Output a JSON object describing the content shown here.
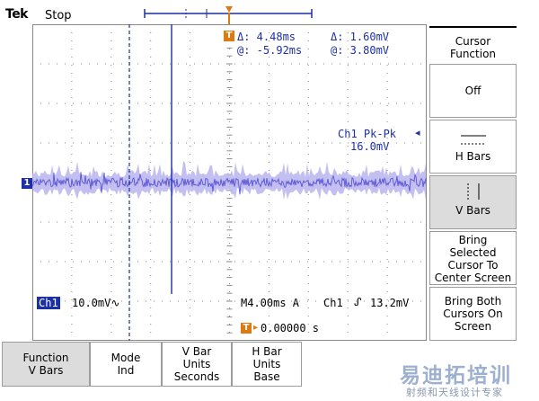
{
  "topbar": {
    "brand": "Tek",
    "status": "Stop"
  },
  "cursor_readout": {
    "delta_time": "Δ:  4.48ms",
    "at_time": "@: -5.92ms",
    "delta_volt": "Δ:   1.60mV",
    "at_volt": "@:   3.80mV"
  },
  "measurement": {
    "label": "Ch1 Pk-Pk",
    "value": "16.0mV"
  },
  "channel_marker": "1",
  "trigger_marker": "T",
  "status_line": {
    "channel": "Ch1",
    "scale": "10.0mV∿",
    "timebase": "M4.00ms  A",
    "trig_channel": "Ch1",
    "trig_level": "13.2mV",
    "trig_position": "0.00000 s"
  },
  "side_menu": {
    "title_line1": "Cursor",
    "title_line2": "Function",
    "items": [
      {
        "line1": "Off",
        "line2": "",
        "line3": "",
        "line4": "",
        "icon": "none",
        "selected": false
      },
      {
        "line1": "H Bars",
        "line2": "",
        "line3": "",
        "line4": "",
        "icon": "h-bars-icon",
        "selected": false
      },
      {
        "line1": "V Bars",
        "line2": "",
        "line3": "",
        "line4": "",
        "icon": "v-bars-icon",
        "selected": true
      },
      {
        "line1": "Bring",
        "line2": "Selected",
        "line3": "Cursor To",
        "line4": "Center Screen",
        "icon": "none",
        "selected": false
      },
      {
        "line1": "Bring Both",
        "line2": "Cursors On",
        "line3": "Screen",
        "line4": "",
        "icon": "none",
        "selected": false
      }
    ]
  },
  "bottom_menu": [
    {
      "line1": "Function",
      "line2": "V Bars",
      "line3": "",
      "selected": true
    },
    {
      "line1": "Mode",
      "line2": "Ind",
      "line3": "",
      "selected": false
    },
    {
      "line1": "V Bar",
      "line2": "Units",
      "line3": "Seconds",
      "selected": false
    },
    {
      "line1": "H Bar",
      "line2": "Units",
      "line3": "Base",
      "selected": false
    }
  ],
  "watermark": {
    "main": "易迪拓培训",
    "sub": "射频和天线设计专家"
  },
  "colors": {
    "trace": "#5b55d6",
    "cursor": "#1c2fa6",
    "grid": "#7a7a7a",
    "trigger": "#e07a10"
  }
}
